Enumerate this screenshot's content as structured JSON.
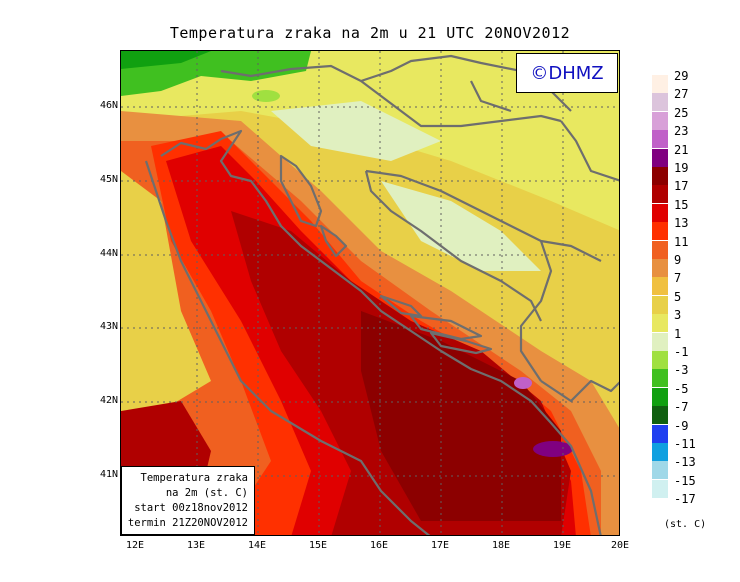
{
  "title": "Temperatura zraka na 2m u 21 UTC 20NOV2012",
  "logo_text": "©DHMZ",
  "info_box": {
    "lines": [
      "Temperatura zraka",
      "na 2m (st. C)",
      "start 00z18nov2012",
      "termin 21Z20NOV2012"
    ]
  },
  "latitude_labels": [
    "46N",
    "45N",
    "44N",
    "43N",
    "42N",
    "41N"
  ],
  "longitude_labels": [
    "12E",
    "13E",
    "14E",
    "15E",
    "16E",
    "17E",
    "18E",
    "19E",
    "20E"
  ],
  "legend": {
    "units": "(st. C)",
    "levels": [
      "29",
      "27",
      "25",
      "23",
      "21",
      "19",
      "17",
      "15",
      "13",
      "11",
      "9",
      "7",
      "5",
      "3",
      "1",
      "-1",
      "-3",
      "-5",
      "-7",
      "-9",
      "-11",
      "-13",
      "-15",
      "-17"
    ],
    "colors": [
      "#fff0e4",
      "#dcc4dc",
      "#d8a0d8",
      "#c060c8",
      "#800080",
      "#8c0000",
      "#b00000",
      "#e00000",
      "#ff3000",
      "#f06020",
      "#e89040",
      "#f0c040",
      "#e8d048",
      "#e8e860",
      "#e0f0c0",
      "#a0e040",
      "#40c020",
      "#10a010",
      "#106010",
      "#2040f0",
      "#10a0e0",
      "#a0d8e8",
      "#d0f0f0",
      "#ffffff"
    ]
  }
}
